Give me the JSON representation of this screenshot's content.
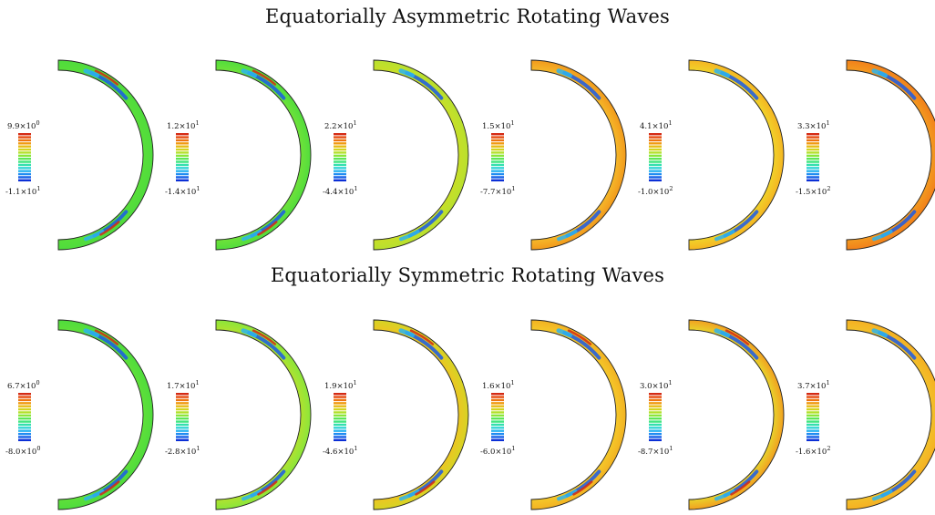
{
  "titles": {
    "asymmetric": "Equatorially Asymmetric Rotating Waves",
    "symmetric": "Equatorially Symmetric Rotating Waves"
  },
  "colormap": [
    "#0b2fd6",
    "#1561e8",
    "#1f8cf2",
    "#2bb4f0",
    "#34d4d6",
    "#33e0ad",
    "#3fe67f",
    "#5ee657",
    "#8be63a",
    "#b3e02c",
    "#d4d41f",
    "#e8bb16",
    "#f09a12",
    "#ee7510",
    "#e64d12",
    "#d42a14"
  ],
  "rows": [
    {
      "id": "asymmetric",
      "panels": [
        {
          "max": "9.9×10",
          "max_exp": "0",
          "min": "-1.1×10",
          "min_exp": "1",
          "base": "#4fdc3c",
          "inner": "#58de3a",
          "red_band": true,
          "blue_band": true
        },
        {
          "max": "1.2×10",
          "max_exp": "1",
          "min": "-1.4×10",
          "min_exp": "1",
          "base": "#52dd3c",
          "inner": "#6fe23a",
          "red_band": true,
          "blue_band": true
        },
        {
          "max": "2.2×10",
          "max_exp": "1",
          "min": "-4.4×10",
          "min_exp": "1",
          "base": "#b8e02e",
          "inner": "#c8df28",
          "red_band": false,
          "blue_band": true
        },
        {
          "max": "1.5×10",
          "max_exp": "1",
          "min": "-7.7×10",
          "min_exp": "1",
          "base": "#f29a1c",
          "inner": "#f5b82a",
          "red_band": false,
          "blue_band": true
        },
        {
          "max": "4.1×10",
          "max_exp": "1",
          "min": "-1.0×10",
          "min_exp": "2",
          "base": "#f5b522",
          "inner": "#f0d22a",
          "red_band": false,
          "blue_band": true
        },
        {
          "max": "3.3×10",
          "max_exp": "1",
          "min": "-1.5×10",
          "min_exp": "2",
          "base": "#f2801a",
          "inner": "#f39a20",
          "red_band": false,
          "blue_band": true
        }
      ]
    },
    {
      "id": "symmetric",
      "panels": [
        {
          "max": "6.7×10",
          "max_exp": "0",
          "min": "-8.0×10",
          "min_exp": "0",
          "base": "#4fdc3c",
          "inner": "#5fe03a",
          "red_band": true,
          "blue_band": true
        },
        {
          "max": "1.7×10",
          "max_exp": "1",
          "min": "-2.8×10",
          "min_exp": "1",
          "base": "#8be63a",
          "inner": "#b0e230",
          "red_band": true,
          "blue_band": true
        },
        {
          "max": "1.9×10",
          "max_exp": "1",
          "min": "-4.6×10",
          "min_exp": "1",
          "base": "#d6d424",
          "inner": "#ecc622",
          "red_band": true,
          "blue_band": true
        },
        {
          "max": "1.6×10",
          "max_exp": "1",
          "min": "-6.0×10",
          "min_exp": "1",
          "base": "#f2b222",
          "inner": "#f5c82a",
          "red_band": true,
          "blue_band": true
        },
        {
          "max": "3.0×10",
          "max_exp": "1",
          "min": "-8.7×10",
          "min_exp": "1",
          "base": "#f2a020",
          "inner": "#e8d22c",
          "red_band": true,
          "blue_band": true
        },
        {
          "max": "3.7×10",
          "max_exp": "1",
          "min": "-1.6×10",
          "min_exp": "2",
          "base": "#f5b022",
          "inner": "#f2c02a",
          "red_band": false,
          "blue_band": true
        }
      ]
    }
  ]
}
